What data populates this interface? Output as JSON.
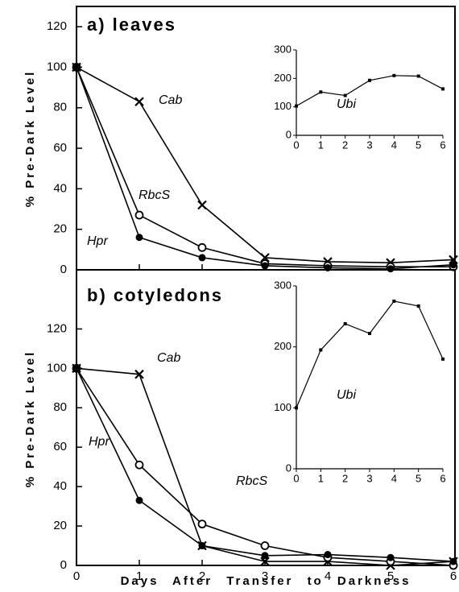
{
  "chart_data": [
    {
      "type": "line",
      "title": "a) leaves",
      "ylabel": "% Pre-Dark Level",
      "xlim": [
        0,
        6
      ],
      "xticks": [
        0,
        1,
        2,
        3,
        4,
        5,
        6
      ],
      "ylim": [
        0,
        130
      ],
      "yticks": [
        0,
        20,
        40,
        60,
        80,
        100,
        120
      ],
      "x": [
        0,
        1,
        2,
        3,
        4,
        5,
        6
      ],
      "series": [
        {
          "name": "Cab",
          "color": "#000000",
          "marker": "x",
          "values": [
            100,
            83,
            32,
            6,
            4,
            3.5,
            5
          ]
        },
        {
          "name": "RbcS",
          "color": "#000000",
          "marker": "open-circle",
          "values": [
            100,
            27,
            11,
            3,
            2,
            1.5,
            1.5
          ]
        },
        {
          "name": "Hpr",
          "color": "#000000",
          "marker": "filled-circle",
          "values": [
            100,
            16,
            6,
            2,
            1,
            0.5,
            2.5
          ]
        }
      ],
      "inset": {
        "type": "line",
        "xlim": [
          0,
          6
        ],
        "xticks": [
          0,
          1,
          2,
          3,
          4,
          5,
          6
        ],
        "ylim": [
          0,
          300
        ],
        "yticks": [
          0,
          100,
          200,
          300
        ],
        "x": [
          0,
          1,
          2,
          3,
          4,
          5,
          6
        ],
        "series": [
          {
            "name": "Ubi",
            "color": "#000000",
            "marker": "square",
            "values": [
              103,
              152,
              140,
              193,
              210,
              208,
              163
            ]
          }
        ]
      }
    },
    {
      "type": "line",
      "title": "b) cotyledons",
      "ylabel": "% Pre-Dark Level",
      "xlabel": "Days After Transfer to Darkness",
      "xlim": [
        0,
        6
      ],
      "xticks": [
        0,
        1,
        2,
        3,
        4,
        5,
        6
      ],
      "ylim": [
        0,
        150
      ],
      "yticks": [
        0,
        20,
        40,
        60,
        80,
        100,
        120
      ],
      "x": [
        0,
        1,
        2,
        3,
        4,
        5,
        6
      ],
      "series": [
        {
          "name": "Cab",
          "color": "#000000",
          "marker": "x",
          "values": [
            100,
            97,
            10,
            2,
            2,
            0,
            2
          ]
        },
        {
          "name": "RbcS",
          "color": "#000000",
          "marker": "open-circle",
          "values": [
            100,
            51,
            21,
            10,
            4,
            2,
            0
          ]
        },
        {
          "name": "Hpr",
          "color": "#000000",
          "marker": "filled-circle",
          "values": [
            100,
            33,
            10,
            5,
            5.5,
            4,
            2
          ]
        }
      ],
      "inset": {
        "type": "line",
        "xlim": [
          0,
          6
        ],
        "xticks": [
          0,
          1,
          2,
          3,
          4,
          5,
          6
        ],
        "ylim": [
          0,
          300
        ],
        "yticks": [
          0,
          100,
          200,
          300
        ],
        "x": [
          0,
          1,
          2,
          3,
          4,
          5,
          6
        ],
        "series": [
          {
            "name": "Ubi",
            "color": "#000000",
            "marker": "square",
            "values": [
              100,
              195,
              238,
              222,
              275,
              267,
              180
            ]
          }
        ]
      }
    }
  ]
}
